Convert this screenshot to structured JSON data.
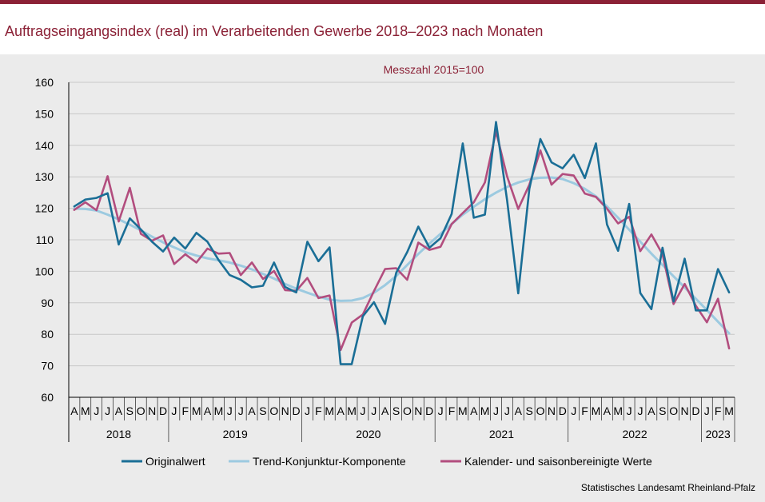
{
  "title": "Auftragseingangsindex (real) im Verarbeitenden Gewerbe 2018–2023 nach Monaten",
  "source": "Statistisches Landesamt Rheinland-Pfalz",
  "colors": {
    "accent": "#8b2136",
    "original": "#1a6e96",
    "trend": "#9ccae0",
    "adjusted": "#b24d7e",
    "grid": "#c8c8c8"
  },
  "chart_data": {
    "type": "line",
    "title": "Auftragseingangsindex (real) im Verarbeitenden Gewerbe 2018–2023 nach Monaten",
    "subtitle": "Messzahl 2015=100",
    "ylim": [
      60,
      160
    ],
    "yticks": [
      60,
      70,
      80,
      90,
      100,
      110,
      120,
      130,
      140,
      150,
      160
    ],
    "grid": true,
    "legend_position": "bottom",
    "categories": [
      "2018-04",
      "2018-05",
      "2018-06",
      "2018-07",
      "2018-08",
      "2018-09",
      "2018-10",
      "2018-11",
      "2018-12",
      "2019-01",
      "2019-02",
      "2019-03",
      "2019-04",
      "2019-05",
      "2019-06",
      "2019-07",
      "2019-08",
      "2019-09",
      "2019-10",
      "2019-11",
      "2019-12",
      "2020-01",
      "2020-02",
      "2020-03",
      "2020-04",
      "2020-05",
      "2020-06",
      "2020-07",
      "2020-08",
      "2020-09",
      "2020-10",
      "2020-11",
      "2020-12",
      "2021-01",
      "2021-02",
      "2021-03",
      "2021-04",
      "2021-05",
      "2021-06",
      "2021-07",
      "2021-08",
      "2021-09",
      "2021-10",
      "2021-11",
      "2021-12",
      "2022-01",
      "2022-02",
      "2022-03",
      "2022-04",
      "2022-05",
      "2022-06",
      "2022-07",
      "2022-08",
      "2022-09",
      "2022-10",
      "2022-11",
      "2022-12",
      "2023-01",
      "2023-02",
      "2023-03"
    ],
    "month_labels": [
      "A",
      "M",
      "J",
      "J",
      "A",
      "S",
      "O",
      "N",
      "D",
      "J",
      "F",
      "M",
      "A",
      "M",
      "J",
      "J",
      "A",
      "S",
      "O",
      "N",
      "D",
      "J",
      "F",
      "M",
      "A",
      "M",
      "J",
      "J",
      "A",
      "S",
      "O",
      "N",
      "D",
      "J",
      "F",
      "M",
      "A",
      "M",
      "J",
      "J",
      "A",
      "S",
      "O",
      "N",
      "D",
      "J",
      "F",
      "M",
      "A",
      "M",
      "J",
      "J",
      "A",
      "S",
      "O",
      "N",
      "D",
      "J",
      "F",
      "M"
    ],
    "year_groups": [
      {
        "label": "2018",
        "start": 0,
        "count": 9
      },
      {
        "label": "2019",
        "start": 9,
        "count": 12
      },
      {
        "label": "2020",
        "start": 21,
        "count": 12
      },
      {
        "label": "2021",
        "start": 33,
        "count": 12
      },
      {
        "label": "2022",
        "start": 45,
        "count": 12
      },
      {
        "label": "2023",
        "start": 57,
        "count": 3
      }
    ],
    "series": [
      {
        "name": "Originalwert",
        "color": "#1a6e96",
        "values": [
          120.6,
          122.8,
          123.3,
          124.8,
          108.5,
          116.8,
          113.3,
          109.4,
          106.3,
          110.7,
          107.2,
          112.2,
          109.4,
          103.6,
          98.8,
          97.3,
          94.9,
          95.4,
          102.8,
          95.0,
          93.3,
          109.4,
          103.2,
          107.6,
          70.5,
          70.5,
          85.7,
          90.2,
          83.3,
          99.5,
          106.1,
          114.2,
          107.5,
          110.5,
          118.2,
          140.6,
          117.0,
          118.0,
          147.4,
          122.5,
          93.0,
          126.2,
          142.0,
          134.6,
          132.7,
          137.0,
          129.6,
          140.6,
          114.9,
          106.5,
          121.4,
          93.1,
          88.0,
          107.5,
          90.4,
          104.0,
          87.6,
          87.6,
          100.7,
          93.3
        ]
      },
      {
        "name": "Trend-Konjunktur-Komponente",
        "color": "#9ccae0",
        "values": [
          119.9,
          119.8,
          119.3,
          118.0,
          116.5,
          114.8,
          113.0,
          111.0,
          109.2,
          107.6,
          106.1,
          105.0,
          104.1,
          103.5,
          102.8,
          101.8,
          100.6,
          99.2,
          97.7,
          96.0,
          94.5,
          93.2,
          92.0,
          91.0,
          90.6,
          90.7,
          91.5,
          93.2,
          95.6,
          98.5,
          102.0,
          105.5,
          108.8,
          111.9,
          115.0,
          118.0,
          120.5,
          122.9,
          125.0,
          126.8,
          128.2,
          129.2,
          129.7,
          129.8,
          129.3,
          128.0,
          126.2,
          123.8,
          120.6,
          117.0,
          113.2,
          109.4,
          105.6,
          102.0,
          98.4,
          94.9,
          91.3,
          87.7,
          84.0,
          80.3
        ]
      },
      {
        "name": "Kalender- und saisonbereinigte Werte",
        "color": "#b24d7e",
        "values": [
          119.5,
          121.9,
          119.4,
          130.2,
          115.8,
          126.5,
          111.9,
          109.7,
          111.4,
          102.3,
          105.4,
          102.8,
          107.2,
          105.6,
          105.8,
          98.8,
          102.8,
          97.6,
          100.1,
          94.0,
          93.8,
          97.9,
          91.5,
          92.3,
          75.0,
          83.7,
          86.3,
          93.7,
          100.7,
          101.0,
          97.3,
          109.1,
          106.8,
          107.8,
          115.0,
          118.5,
          121.9,
          128.2,
          144.4,
          130.1,
          119.8,
          127.5,
          138.4,
          127.5,
          130.9,
          130.4,
          124.7,
          123.6,
          119.9,
          115.2,
          117.3,
          106.4,
          111.7,
          105.4,
          89.6,
          96.0,
          89.1,
          83.8,
          91.3,
          75.5
        ]
      }
    ]
  }
}
